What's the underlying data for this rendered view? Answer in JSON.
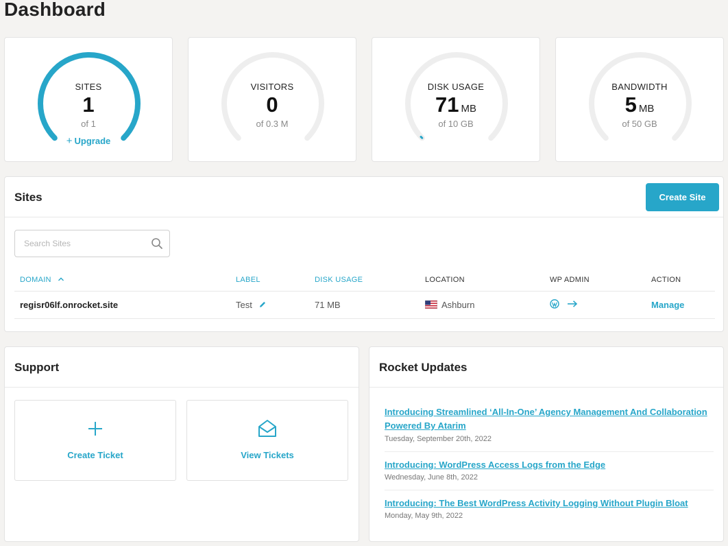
{
  "page": {
    "title": "Dashboard"
  },
  "stats": [
    {
      "label": "SITES",
      "value": "1",
      "unit": "",
      "of": "of 1",
      "fraction": 1.0
    },
    {
      "label": "VISITORS",
      "value": "0",
      "unit": "",
      "of": "of 0.3 M",
      "fraction": 0.0
    },
    {
      "label": "DISK USAGE",
      "value": "71",
      "unit": "MB",
      "of": "of 10 GB",
      "fraction": 0.007
    },
    {
      "label": "BANDWIDTH",
      "value": "5",
      "unit": "MB",
      "of": "of 50 GB",
      "fraction": 0.0
    }
  ],
  "upgrade_label": "Upgrade",
  "colors": {
    "accent": "#27a6c9",
    "track": "#eeeeee"
  },
  "sites": {
    "title": "Sites",
    "create_label": "Create Site",
    "search_placeholder": "Search Sites",
    "columns": {
      "domain": "DOMAIN",
      "label": "LABEL",
      "disk_usage": "DISK USAGE",
      "location": "LOCATION",
      "wp_admin": "WP ADMIN",
      "action": "ACTION"
    },
    "rows": [
      {
        "domain": "regisr06lf.onrocket.site",
        "label": "Test",
        "disk_usage": "71 MB",
        "location": "Ashburn",
        "action": "Manage"
      }
    ]
  },
  "support": {
    "title": "Support",
    "create_ticket": "Create Ticket",
    "view_tickets": "View Tickets"
  },
  "updates": {
    "title": "Rocket Updates",
    "items": [
      {
        "title": "Introducing Streamlined ‘All-In-One’ Agency Management And Collaboration Powered By Atarim",
        "date": "Tuesday, September 20th, 2022"
      },
      {
        "title": "Introducing: WordPress Access Logs from the Edge",
        "date": "Wednesday, June 8th, 2022"
      },
      {
        "title": "Introducing: The Best WordPress Activity Logging Without Plugin Bloat",
        "date": "Monday, May 9th, 2022"
      }
    ]
  }
}
